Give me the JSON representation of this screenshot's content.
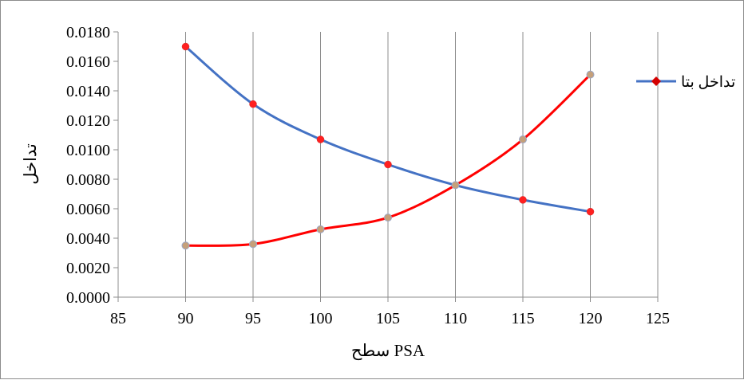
{
  "chart_data": {
    "type": "line",
    "title": "",
    "xlabel": "سطح PSA",
    "ylabel": "تداخل",
    "xlim": [
      85,
      125
    ],
    "ylim": [
      0.0,
      0.018
    ],
    "x_ticks": [
      "85",
      "90",
      "95",
      "100",
      "105",
      "110",
      "115",
      "120",
      "125"
    ],
    "y_ticks": [
      "0.0000",
      "0.0020",
      "0.0040",
      "0.0060",
      "0.0080",
      "0.0100",
      "0.0120",
      "0.0140",
      "0.0160",
      "0.0180"
    ],
    "grid": "vertical",
    "legend_position": "right",
    "series": [
      {
        "name": "تداخل بتا",
        "color": "#ff0000",
        "marker": "diamond",
        "x": [
          90,
          95,
          100,
          105,
          110,
          115,
          120
        ],
        "y": [
          0.0035,
          0.0036,
          0.0046,
          0.0054,
          0.0076,
          0.0107,
          0.0151
        ]
      },
      {
        "color": "#4472c4",
        "marker": "circle",
        "x": [
          90,
          95,
          100,
          105,
          110,
          115,
          120
        ],
        "y": [
          0.017,
          0.0131,
          0.0107,
          0.009,
          0.0076,
          0.0066,
          0.0058
        ]
      }
    ]
  }
}
